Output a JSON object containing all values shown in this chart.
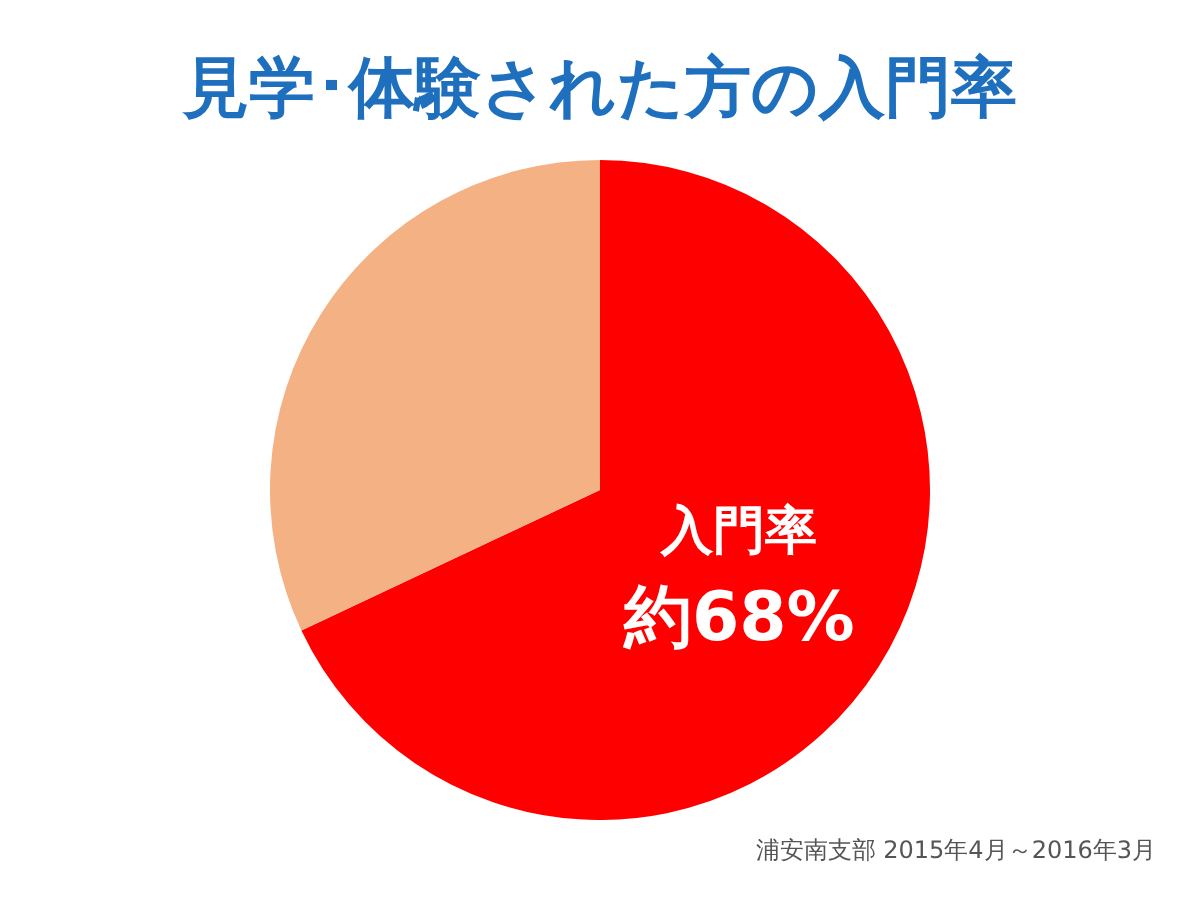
{
  "chart_data": {
    "type": "pie",
    "title": "見学･体験された方の入門率",
    "categories": [
      "入門率",
      null
    ],
    "values": [
      68,
      32
    ],
    "colors": [
      "#ff0000",
      "#f4b183"
    ],
    "value_labels": [
      "約68%",
      null
    ],
    "legend": false,
    "annotations": [
      "浦安南支部 2015年4月～2016年3月"
    ]
  }
}
